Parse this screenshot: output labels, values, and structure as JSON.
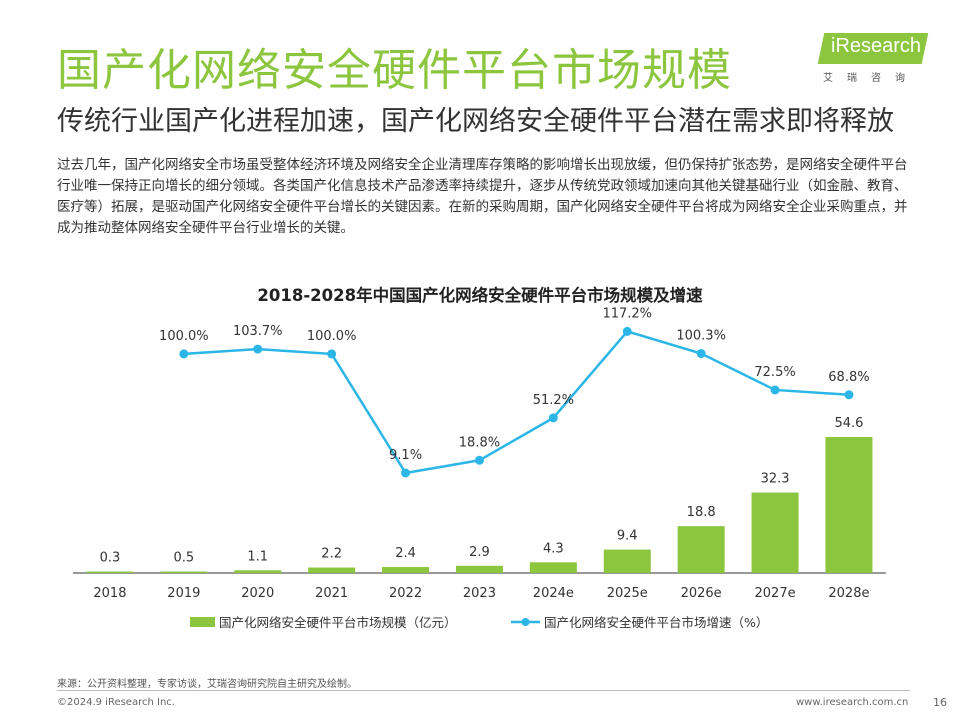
{
  "header": {
    "title": "国产化网络安全硬件平台市场规模",
    "subtitle": "传统行业国产化进程加速，国产化网络安全硬件平台潜在需求即将释放"
  },
  "logo": {
    "text": "iResearch",
    "subtext": "艾瑞咨询"
  },
  "body_text": "过去几年，国产化网络安全市场虽受整体经济环境及网络安全企业清理库存策略的影响增长出现放缓，但仍保持扩张态势，是网络安全硬件平台行业唯一保持正向增长的细分领域。各类国产化信息技术产品渗透率持续提升，逐步从传统党政领域加速向其他关键基础行业（如金融、教育、医疗等）拓展，是驱动国产化网络安全硬件平台增长的关键因素。在新的采购周期，国产化网络安全硬件平台将成为网络安全企业采购重点，并成为推动整体网络安全硬件平台行业增长的关键。",
  "colors": {
    "brand_green": "#8cc63e",
    "line_blue": "#2bb6e6"
  },
  "chart_data": {
    "type": "bar",
    "title": "2018-2028年中国国产化网络安全硬件平台市场规模及增速",
    "categories": [
      "2018",
      "2019",
      "2020",
      "2021",
      "2022",
      "2023",
      "2024e",
      "2025e",
      "2026e",
      "2027e",
      "2028e"
    ],
    "series": [
      {
        "name": "国产化网络安全硬件平台市场规模（亿元）",
        "type": "bar",
        "values": [
          0.3,
          0.5,
          1.1,
          2.2,
          2.4,
          2.9,
          4.3,
          9.4,
          18.8,
          32.3,
          54.6
        ],
        "labels": [
          "0.3",
          "0.5",
          "1.1",
          "2.2",
          "2.4",
          "2.9",
          "4.3",
          "9.4",
          "18.8",
          "32.3",
          "54.6"
        ]
      },
      {
        "name": "国产化网络安全硬件平台市场增速（%）",
        "type": "line",
        "values": [
          null,
          100.0,
          103.7,
          100.0,
          9.1,
          18.8,
          51.2,
          117.2,
          100.3,
          72.5,
          68.8
        ],
        "labels": [
          "",
          "100.0%",
          "103.7%",
          "100.0%",
          "9.1%",
          "18.8%",
          "51.2%",
          "117.2%",
          "100.3%",
          "72.5%",
          "68.8%"
        ]
      }
    ],
    "legend_position": "bottom",
    "grid": false
  },
  "footer": {
    "source": "来源：公开资料整理，专家访谈，艾瑞咨询研究院自主研究及绘制。",
    "copyright": "©2024.9 iResearch Inc.",
    "website": "www.iresearch.com.cn",
    "page_number": "16"
  }
}
